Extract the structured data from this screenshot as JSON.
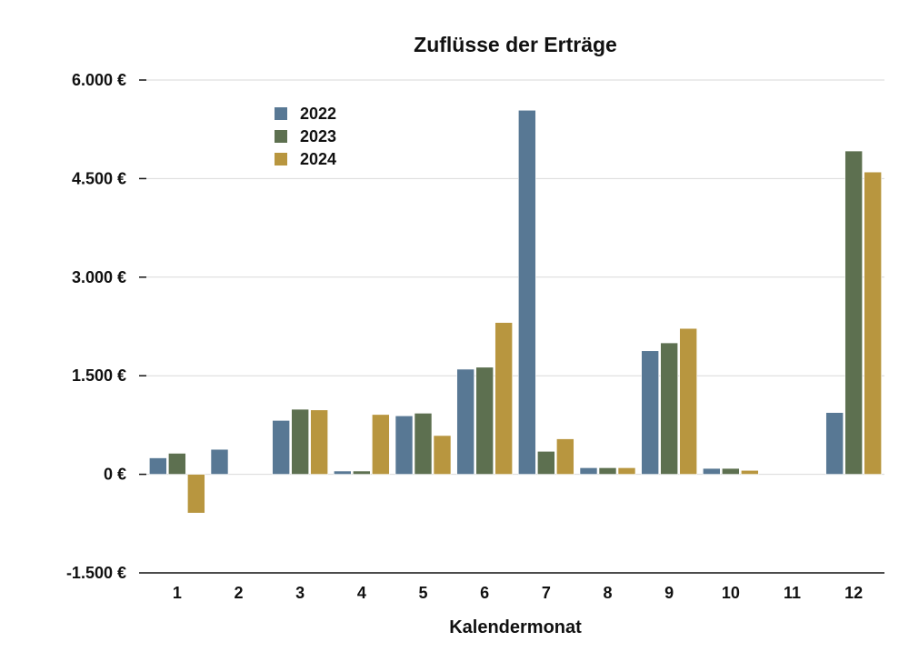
{
  "chart_data": {
    "type": "bar",
    "title": "Zuflüsse der Erträge",
    "xlabel": "Kalendermonat",
    "ylabel": "",
    "categories": [
      "1",
      "2",
      "3",
      "4",
      "5",
      "6",
      "7",
      "8",
      "9",
      "10",
      "11",
      "12"
    ],
    "series": [
      {
        "name": "2022",
        "color": "#587894",
        "values": [
          250,
          380,
          820,
          50,
          890,
          1600,
          5540,
          100,
          1880,
          90,
          0,
          940
        ]
      },
      {
        "name": "2023",
        "color": "#5d7050",
        "values": [
          320,
          0,
          990,
          50,
          930,
          1630,
          350,
          100,
          2000,
          90,
          0,
          4920
        ]
      },
      {
        "name": "2024",
        "color": "#b8963f",
        "values": [
          -590,
          0,
          980,
          910,
          590,
          2310,
          540,
          100,
          2220,
          60,
          0,
          4600
        ]
      }
    ],
    "ylim": [
      -1500,
      6000
    ],
    "yticks": [
      -1500,
      0,
      1500,
      3000,
      4500,
      6000
    ],
    "ytick_labels": [
      "-1.500 €",
      "0 €",
      "1.500 €",
      "3.000 €",
      "4.500 €",
      "6.000 €"
    ],
    "grid": true,
    "legend_position": "top-left"
  }
}
